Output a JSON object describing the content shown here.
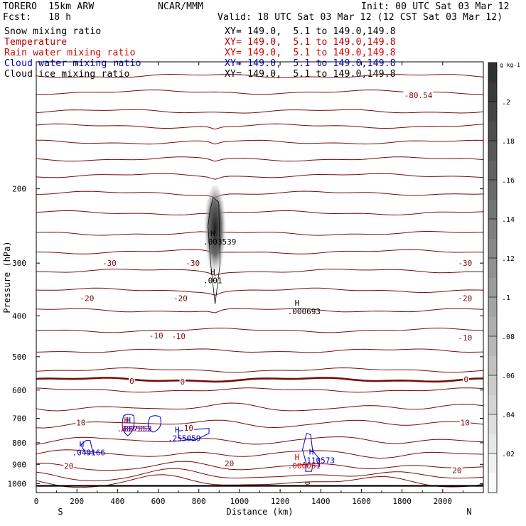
{
  "header": {
    "model": "TORERO  15km ARW",
    "org": "NCAR/MMM",
    "init": "Init: 00 UTC Sat 03 Mar 12",
    "fcst": "Fcst:   18 h",
    "valid": "Valid: 18 UTC Sat 03 Mar 12 (12 CST Sat 03 Mar 12)"
  },
  "legend": [
    {
      "name": "Snow mixing ratio",
      "range": "XY= 149.0,  5.1 to 149.0,149.8",
      "color": "#000000"
    },
    {
      "name": "Temperature",
      "range": "XY= 149.0,  5.1 to 149.0,149.8",
      "color": "#b00000"
    },
    {
      "name": "Rain water mixing ratio",
      "range": "XY= 149.0,  5.1 to 149.0,149.8",
      "color": "#d00000"
    },
    {
      "name": "Cloud water mixing ratio",
      "range": "XY= 149.0,  5.1 to 149.0,149.8",
      "color": "#0000c0"
    },
    {
      "name": "Cloud ice mixing ratio",
      "range": "XY= 149.0,  5.1 to 149.0,149.8",
      "color": "#000000"
    }
  ],
  "chart_data": {
    "type": "cross-section",
    "xlabel": "Distance (km)",
    "ylabel": "Pressure (hPa)",
    "xlim": [
      0,
      2200
    ],
    "ylim": [
      1050,
      100
    ],
    "y_scale": "log",
    "x_ticks": [
      0,
      200,
      400,
      600,
      800,
      1000,
      1200,
      1400,
      1600,
      1800,
      2000
    ],
    "y_ticks": [
      200,
      300,
      400,
      500,
      600,
      700,
      800,
      900,
      1000
    ],
    "x_end_labels": {
      "left": "S",
      "right": "N"
    },
    "temperature_labels": [
      {
        "text": "-80.54",
        "x": 1880,
        "p": 120
      },
      {
        "text": "-30",
        "x": 360,
        "p": 300
      },
      {
        "text": "-30",
        "x": 770,
        "p": 300
      },
      {
        "text": "-30",
        "x": 2110,
        "p": 300
      },
      {
        "text": "-20",
        "x": 250,
        "p": 363
      },
      {
        "text": "-20",
        "x": 710,
        "p": 363
      },
      {
        "text": "-20",
        "x": 2110,
        "p": 363
      },
      {
        "text": "-10",
        "x": 590,
        "p": 445
      },
      {
        "text": "-10",
        "x": 700,
        "p": 447
      },
      {
        "text": "-10",
        "x": 2110,
        "p": 451
      },
      {
        "text": "0",
        "x": 470,
        "p": 571
      },
      {
        "text": "0",
        "x": 720,
        "p": 573
      },
      {
        "text": "0",
        "x": 2115,
        "p": 565
      },
      {
        "text": "10",
        "x": 220,
        "p": 717
      },
      {
        "text": "10",
        "x": 750,
        "p": 738
      },
      {
        "text": "10",
        "x": 2110,
        "p": 717
      },
      {
        "text": "20",
        "x": 160,
        "p": 908
      },
      {
        "text": "20",
        "x": 950,
        "p": 895
      },
      {
        "text": "20",
        "x": 2070,
        "p": 930
      }
    ],
    "maxima": [
      {
        "text": ".003539",
        "x": 885,
        "p": 265,
        "color": "#000000"
      },
      {
        "text": ".001",
        "x": 885,
        "p": 327,
        "color": "#000000"
      },
      {
        "text": ".000693",
        "x": 1300,
        "p": 387,
        "color": "#000000"
      },
      {
        "text": ".049166",
        "x": 240,
        "p": 837,
        "color": "#0000c0"
      },
      {
        "text": ".255059",
        "x": 710,
        "p": 774,
        "color": "#0000c0"
      },
      {
        "text": ".110573",
        "x": 1370,
        "p": 873,
        "color": "#0000c0"
      },
      {
        "text": ".000061",
        "x": 1300,
        "p": 899,
        "color": "#d00000"
      },
      {
        "text": ".887553",
        "x": 460,
        "p": 735,
        "color": "#d00000"
      },
      {
        "text": ".887553",
        "x": 470,
        "p": 735,
        "color": "#0000c0"
      }
    ],
    "colorbar": {
      "unit_label": "g kg-1",
      "ticks": [
        ".02",
        ".04",
        ".06",
        ".08",
        ".1",
        ".12",
        ".14",
        ".16",
        ".18",
        ".2"
      ],
      "range": [
        0,
        0.22
      ]
    }
  }
}
